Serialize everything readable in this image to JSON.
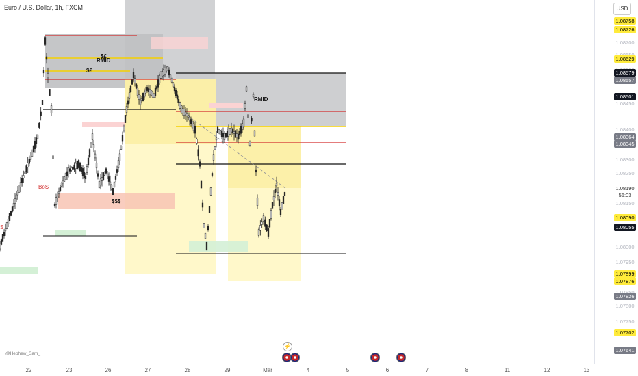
{
  "header": {
    "symbol_title": "Euro / U.S. Dollar, 1h, FXCM",
    "currency_button": "USD"
  },
  "price_axis": {
    "grey_labels": [
      "1.08700",
      "1.08650",
      "1.08600",
      "1.08450",
      "1.08400",
      "1.08300",
      "1.08250",
      "1.08150",
      "1.08000",
      "1.07950",
      "1.07850",
      "1.07800",
      "1.07750"
    ],
    "badges": [
      {
        "text": "1.08758",
        "bg": "#ffeb3b",
        "fg": "#000"
      },
      {
        "text": "1.08726",
        "bg": "#ffeb3b",
        "fg": "#000"
      },
      {
        "text": "1.08629",
        "bg": "#ffeb3b",
        "fg": "#000"
      },
      {
        "text": "1.08579",
        "bg": "#131722",
        "fg": "#fff"
      },
      {
        "text": "1.08557",
        "bg": "#787b86",
        "fg": "#fff"
      },
      {
        "text": "1.08501",
        "bg": "#131722",
        "fg": "#fff"
      },
      {
        "text": "1.08364",
        "bg": "#787b86",
        "fg": "#fff"
      },
      {
        "text": "1.08345",
        "bg": "#787b86",
        "fg": "#fff"
      },
      {
        "text": "1.08090",
        "bg": "#ffeb3b",
        "fg": "#000"
      },
      {
        "text": "1.08055",
        "bg": "#131722",
        "fg": "#fff"
      },
      {
        "text": "1.07899",
        "bg": "#ffeb3b",
        "fg": "#000"
      },
      {
        "text": "1.07876",
        "bg": "#ffeb3b",
        "fg": "#000"
      },
      {
        "text": "1.07826",
        "bg": "#787b86",
        "fg": "#fff"
      },
      {
        "text": "1.07702",
        "bg": "#ffeb3b",
        "fg": "#000"
      },
      {
        "text": "1.07641",
        "bg": "#787b86",
        "fg": "#fff"
      }
    ],
    "current_price": "1.08190",
    "countdown": "56:03"
  },
  "time_axis": [
    "22",
    "23",
    "26",
    "27",
    "28",
    "29",
    "Mar",
    "4",
    "5",
    "6",
    "7",
    "8",
    "11",
    "12",
    "13"
  ],
  "annotations": {
    "sf": "$£",
    "rmid_left": "RMID",
    "s_pound": "$£",
    "bos": "BoS",
    "sss": "$$$",
    "rmid_right": "RMID",
    "edge": "S"
  },
  "footer": {
    "credit": "@Hephew_Sam_"
  }
}
